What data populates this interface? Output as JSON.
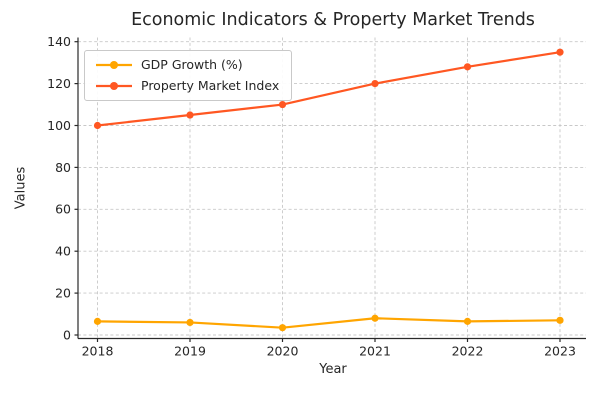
{
  "chart_data": {
    "type": "line",
    "title": "Economic Indicators & Property Market Trends",
    "xlabel": "Year",
    "ylabel": "Values",
    "categories": [
      "2018",
      "2019",
      "2020",
      "2021",
      "2022",
      "2023"
    ],
    "series": [
      {
        "name": "GDP Growth (%)",
        "color": "#FFA500",
        "values": [
          6.5,
          6.0,
          3.5,
          8.0,
          6.5,
          7.0
        ]
      },
      {
        "name": "Property Market Index",
        "color": "#FF5722",
        "values": [
          100,
          105,
          110,
          120,
          128,
          135
        ]
      }
    ],
    "ylim": [
      0,
      140
    ],
    "yticks": [
      0,
      20,
      40,
      60,
      80,
      100,
      120,
      140
    ],
    "grid": true,
    "grid_style": "dashed",
    "legend_position": "upper left"
  },
  "colors": {
    "background": "#ffffff",
    "text": "#262626",
    "grid": "#c8c8c8",
    "spine": "#2a2a2a",
    "legend_border": "#c9c9c9",
    "legend_background": "#ffffff"
  }
}
